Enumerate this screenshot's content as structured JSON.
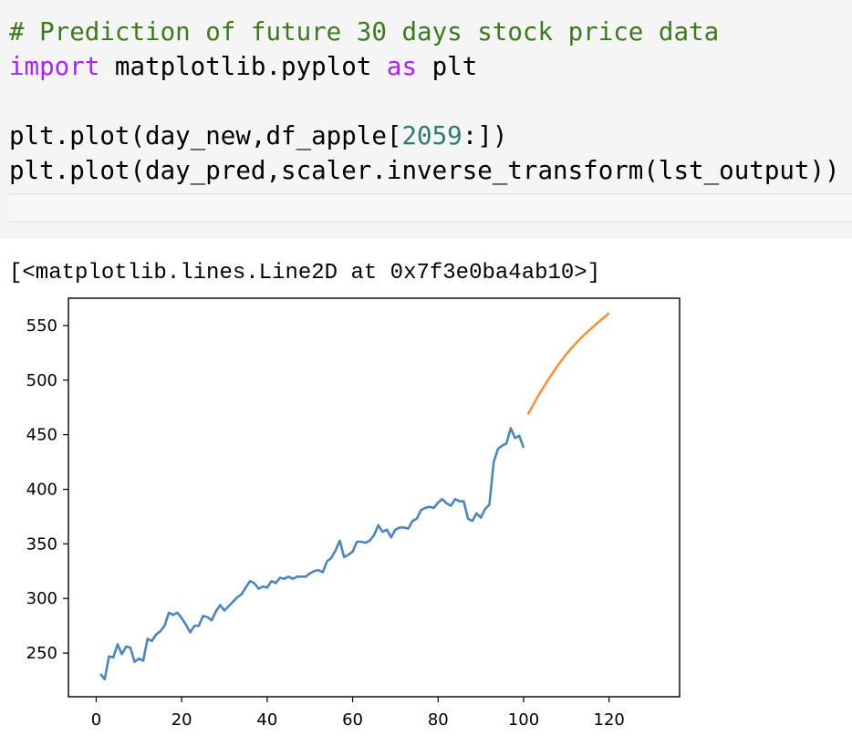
{
  "input_cell": {
    "lines": [
      {
        "parts": [
          {
            "text": "# Prediction of future 30 days stock price data",
            "cls": "comment"
          }
        ]
      },
      {
        "parts": [
          {
            "text": "import",
            "cls": "kw"
          },
          {
            "text": " matplotlib.pyplot ",
            "cls": ""
          },
          {
            "text": "as",
            "cls": "kw"
          },
          {
            "text": " plt",
            "cls": ""
          }
        ]
      },
      {
        "parts": []
      },
      {
        "parts": [
          {
            "text": "plt.plot(day_new,df_apple[",
            "cls": ""
          },
          {
            "text": "2059",
            "cls": "num"
          },
          {
            "text": ":])",
            "cls": ""
          }
        ]
      },
      {
        "parts": [
          {
            "text": "plt.plot(day_pred,scaler.inverse_transform(lst_output))",
            "cls": ""
          }
        ]
      }
    ]
  },
  "output_text": "[<matplotlib.lines.Line2D at 0x7f3e0ba4ab10>]",
  "chart_data": {
    "type": "line",
    "title": "",
    "xlabel": "",
    "ylabel": "",
    "xlim": [
      -6.5,
      136.5
    ],
    "ylim": [
      210,
      575
    ],
    "x_ticks": [
      0,
      20,
      40,
      60,
      80,
      100,
      120
    ],
    "y_ticks": [
      250,
      300,
      350,
      400,
      450,
      500,
      550
    ],
    "grid": false,
    "series": [
      {
        "color": "#4b86bf",
        "x_start": 1,
        "values": [
          231,
          226,
          247,
          246,
          258,
          249,
          256,
          255,
          242,
          245,
          243,
          263,
          261,
          267,
          270,
          275,
          287,
          285,
          287,
          282,
          276,
          269,
          275,
          275,
          284,
          283,
          280,
          288,
          294,
          289,
          293,
          297,
          301,
          304,
          310,
          316,
          314,
          309,
          311,
          310,
          316,
          314,
          319,
          318,
          320,
          318,
          320,
          320,
          320,
          323,
          325,
          326,
          324,
          334,
          337,
          344,
          353,
          338,
          340,
          343,
          352,
          352,
          351,
          353,
          358,
          367,
          361,
          363,
          356,
          363,
          365,
          365,
          364,
          371,
          373,
          381,
          383,
          384,
          383,
          388,
          391,
          387,
          385,
          391,
          389,
          389,
          373,
          371,
          378,
          374,
          382,
          386,
          425,
          437,
          440,
          442,
          456,
          447,
          449,
          438
        ]
      },
      {
        "color": "#f5923e",
        "x_start": 101,
        "values": [
          468.5,
          475.6,
          482.5,
          489.2,
          495.6,
          501.8,
          507.7,
          513.3,
          518.6,
          523.6,
          528.3,
          532.7,
          536.8,
          540.7,
          544.4,
          547.9,
          551.3,
          554.7,
          558.0,
          561.3
        ]
      }
    ]
  }
}
